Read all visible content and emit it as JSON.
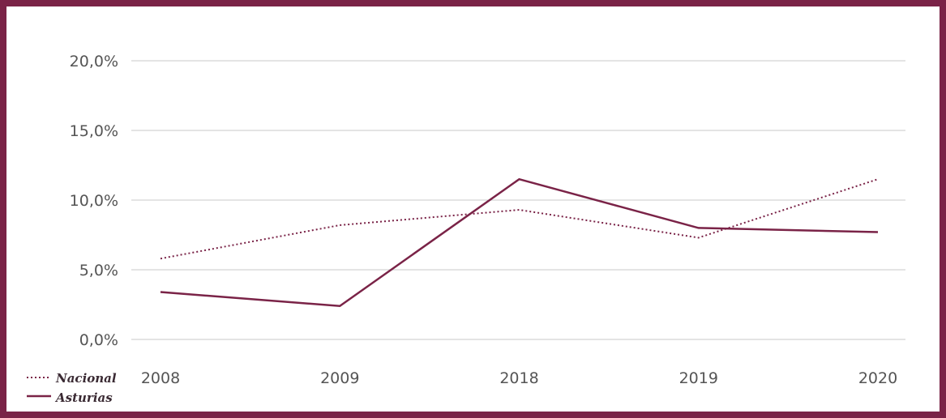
{
  "colors": {
    "frame": "#7a2347",
    "series": "#7a2347",
    "grid": "#c8c8c8",
    "tick_text": "#555555"
  },
  "chart_data": {
    "type": "line",
    "title": "",
    "xlabel": "",
    "ylabel": "",
    "categories": [
      "2008",
      "2009",
      "2018",
      "2019",
      "2020"
    ],
    "ylim": [
      0,
      20
    ],
    "yticks": [
      0,
      5,
      10,
      15,
      20
    ],
    "ytick_labels": [
      "0,0%",
      "5,0%",
      "10,0%",
      "15,0%",
      "20,0%"
    ],
    "grid": true,
    "legend_position": "bottom-left",
    "series": [
      {
        "name": "Nacional",
        "style": "dotted",
        "values": [
          5.8,
          8.2,
          9.3,
          7.3,
          11.5
        ]
      },
      {
        "name": "Asturias",
        "style": "solid",
        "values": [
          3.4,
          2.4,
          11.5,
          8.0,
          7.7
        ]
      }
    ]
  }
}
